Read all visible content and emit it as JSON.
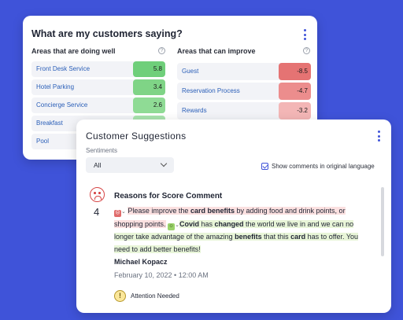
{
  "insights": {
    "title": "What are my customers saying?",
    "doing_well": {
      "heading": "Areas that are doing well",
      "items": [
        {
          "label": "Front Desk Service",
          "value": "5.8"
        },
        {
          "label": "Hotel Parking",
          "value": "3.4"
        },
        {
          "label": "Concierge Service",
          "value": "2.6"
        },
        {
          "label": "Breakfast",
          "value": ""
        },
        {
          "label": "Pool",
          "value": ""
        }
      ]
    },
    "can_improve": {
      "heading": "Areas that can improve",
      "items": [
        {
          "label": "Guest",
          "value": "-8.5"
        },
        {
          "label": "Reservation Process",
          "value": "-4.7"
        },
        {
          "label": "Rewards",
          "value": "-3.2"
        }
      ]
    },
    "colors": {
      "positive_strong": "#6fcf7a",
      "positive_light": "#8fdb95",
      "negative_strong": "#e57373",
      "negative_light": "#f3b6b6"
    }
  },
  "suggestions": {
    "title": "Customer Suggestions",
    "sentiments_label": "Sentiments",
    "sentiment_selected": "All",
    "show_original_label": "Show comments in original language",
    "show_original_checked": true,
    "comment": {
      "score": "4",
      "title": "Reasons for Score Comment",
      "seg1_pre": "Please improve the ",
      "seg1_bold": "card benefits",
      "seg1_post": " by adding food and drink points, or shopping points.",
      "seg2_bold": "Covid",
      "seg2_mid": " has ",
      "seg2_bold2": "changed",
      "seg2_post": " the world we live in and we can no longer take advantage of the amazing ",
      "seg2_bold3": "benefits",
      "seg2_mid2": " that this ",
      "seg2_bold4": "card",
      "seg2_end": " has to offer. You need to add better benefits!",
      "author": "Michael Kopacz",
      "date": "February 10, 2022 • 12:00 AM",
      "status": "Attention Needed"
    }
  }
}
